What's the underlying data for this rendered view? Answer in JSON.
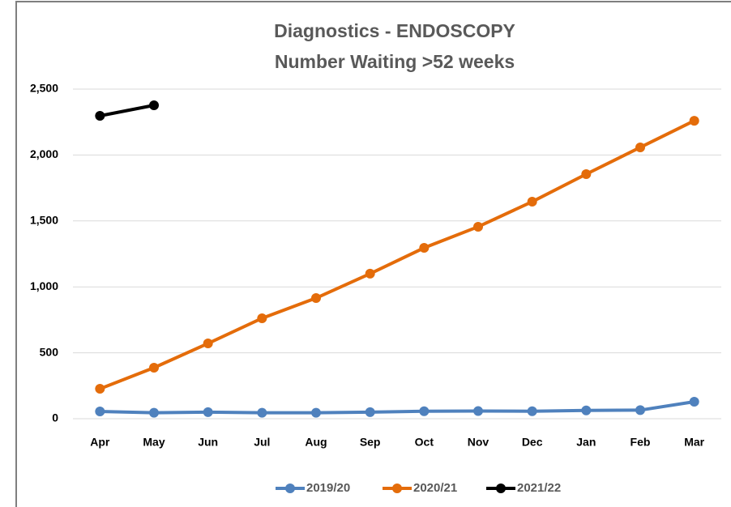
{
  "chart_data": {
    "type": "line",
    "title": "Diagnostics - ENDOSCOPY",
    "subtitle": "Number Waiting >52 weeks",
    "categories": [
      "Apr",
      "May",
      "Jun",
      "Jul",
      "Aug",
      "Sep",
      "Oct",
      "Nov",
      "Dec",
      "Jan",
      "Feb",
      "Mar"
    ],
    "series": [
      {
        "name": "2019/20",
        "color": "#4f81bd",
        "values": [
          55,
          45,
          50,
          45,
          45,
          50,
          57,
          58,
          57,
          63,
          65,
          129
        ]
      },
      {
        "name": "2020/21",
        "color": "#e46c0a",
        "values": [
          227,
          387,
          571,
          762,
          915,
          1100,
          1296,
          1456,
          1646,
          1855,
          2058,
          2260
        ]
      },
      {
        "name": "2021/22",
        "color": "#000000",
        "values": [
          2297,
          2377,
          null,
          null,
          null,
          null,
          null,
          null,
          null,
          null,
          null,
          null
        ]
      }
    ],
    "ylim": [
      0,
      2500
    ],
    "yticks": [
      0,
      500,
      {
        "value": 1000,
        "label": "1,000"
      },
      {
        "value": 1500,
        "label": "1,500"
      },
      {
        "value": 2000,
        "label": "2,000"
      },
      {
        "value": 2500,
        "label": "2,500"
      }
    ],
    "grid": true,
    "legend": "bottom"
  }
}
